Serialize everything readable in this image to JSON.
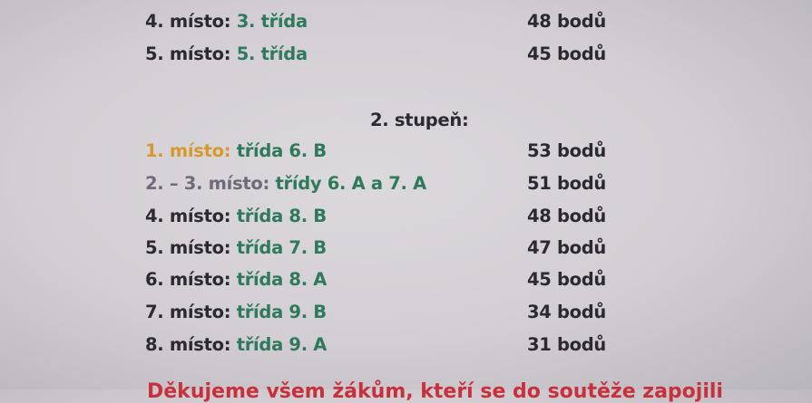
{
  "colors": {
    "text": "#2c2a31",
    "class": "#2f7a5c",
    "first": "#d49a2c",
    "second": "#6f6b7a",
    "thanks": "#c8313c"
  },
  "stage1_rows": [
    {
      "place": "4. místo:",
      "class": "3. třída",
      "points": "48 bodů"
    },
    {
      "place": "5. místo:",
      "class": "5. třída",
      "points": "45 bodů"
    }
  ],
  "stage2": {
    "heading": "2. stupeň:",
    "rows": [
      {
        "place": "1. místo:",
        "class": "třída 6. B",
        "points": "53 bodů"
      },
      {
        "place": "2. – 3. místo:",
        "class": "třídy 6. A a 7. A",
        "points": "51 bodů"
      },
      {
        "place": "4. místo:",
        "class": "třída 8. B",
        "points": "48 bodů"
      },
      {
        "place": "5. místo:",
        "class": "třída 7. B",
        "points": "47 bodů"
      },
      {
        "place": "6. místo:",
        "class": "třída 8. A",
        "points": "45 bodů"
      },
      {
        "place": "7. místo:",
        "class": "třída 9. B",
        "points": "34 bodů"
      },
      {
        "place": "8. místo:",
        "class": "třída 9. A",
        "points": "31 bodů"
      }
    ]
  },
  "thanks": "Děkujeme všem žákům, kteří se do soutěže zapojili"
}
